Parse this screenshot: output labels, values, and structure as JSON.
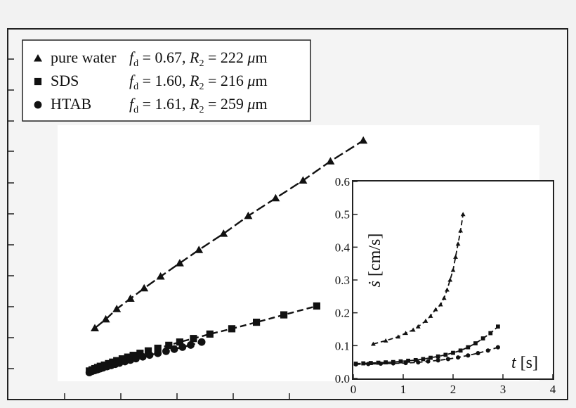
{
  "chart_data": [
    {
      "type": "scatter",
      "title": "",
      "xlabel": "",
      "ylabel": "",
      "legend_position": "top-left",
      "legend": [
        {
          "marker": "triangle",
          "name": "pure water",
          "params": "f",
          "sub": "d",
          "eq": " = 0.67, ",
          "r": "R",
          "rsub": "2",
          "req": " = 222 ",
          "unit": "μ",
          "unit2": "m"
        },
        {
          "marker": "square",
          "name": "SDS",
          "params": "f",
          "sub": "d",
          "eq": " = 1.60, ",
          "r": "R",
          "rsub": "2",
          "req": " = 216 ",
          "unit": "μ",
          "unit2": "m"
        },
        {
          "marker": "circle",
          "name": "HTAB",
          "params": "f",
          "sub": "d",
          "eq": " = 1.61, ",
          "r": "R",
          "rsub": "2",
          "req": " = 259 ",
          "unit": "μ",
          "unit2": "m"
        }
      ],
      "xlim": [
        0,
        1
      ],
      "ylim": [
        0,
        1
      ],
      "series": [
        {
          "marker": "triangle",
          "x": [
            0.0,
            0.04,
            0.08,
            0.13,
            0.18,
            0.24,
            0.31,
            0.38,
            0.47,
            0.56,
            0.66,
            0.76,
            0.86,
            0.98
          ],
          "y": [
            0.175,
            0.205,
            0.24,
            0.275,
            0.31,
            0.35,
            0.395,
            0.44,
            0.495,
            0.555,
            0.615,
            0.675,
            0.74,
            0.81
          ]
        },
        {
          "marker": "square",
          "x": [
            -0.02,
            -0.01,
            0.0,
            0.01,
            0.02,
            0.035,
            0.05,
            0.065,
            0.08,
            0.1,
            0.12,
            0.14,
            0.165,
            0.195,
            0.23,
            0.27,
            0.31,
            0.36,
            0.42,
            0.5,
            0.59,
            0.69,
            0.81
          ],
          "y": [
            0.03,
            0.034,
            0.038,
            0.042,
            0.046,
            0.05,
            0.055,
            0.06,
            0.065,
            0.071,
            0.077,
            0.083,
            0.09,
            0.098,
            0.107,
            0.117,
            0.128,
            0.14,
            0.155,
            0.173,
            0.195,
            0.22,
            0.25
          ]
        },
        {
          "marker": "circle",
          "x": [
            -0.02,
            -0.01,
            0.0,
            0.01,
            0.02,
            0.03,
            0.045,
            0.06,
            0.075,
            0.09,
            0.11,
            0.13,
            0.15,
            0.175,
            0.2,
            0.23,
            0.26,
            0.29,
            0.32,
            0.35,
            0.39
          ],
          "y": [
            0.025,
            0.029,
            0.032,
            0.035,
            0.038,
            0.041,
            0.045,
            0.049,
            0.053,
            0.057,
            0.062,
            0.067,
            0.072,
            0.078,
            0.084,
            0.09,
            0.097,
            0.104,
            0.111,
            0.118,
            0.128
          ]
        }
      ]
    },
    {
      "type": "scatter",
      "title": "",
      "xlabel_var": "t",
      "xlabel_unit": "[s]",
      "ylabel_var": "ṡ",
      "ylabel_unit": "[cm/s]",
      "xlim": [
        0,
        4
      ],
      "ylim": [
        0,
        0.6
      ],
      "xticks": [
        "0",
        "1",
        "2",
        "3",
        "4"
      ],
      "yticks": [
        "0.0",
        "0.1",
        "0.2",
        "0.3",
        "0.4",
        "0.5",
        "0.6"
      ],
      "series": [
        {
          "marker": "triangle",
          "x": [
            0.4,
            0.65,
            0.9,
            1.05,
            1.2,
            1.3,
            1.45,
            1.55,
            1.65,
            1.75,
            1.82,
            1.88,
            1.94,
            2.0,
            2.05,
            2.1,
            2.15,
            2.2
          ],
          "y": [
            0.105,
            0.115,
            0.127,
            0.138,
            0.148,
            0.158,
            0.175,
            0.19,
            0.21,
            0.225,
            0.245,
            0.27,
            0.3,
            0.33,
            0.37,
            0.41,
            0.45,
            0.5
          ]
        },
        {
          "marker": "square",
          "x": [
            0.05,
            0.2,
            0.35,
            0.5,
            0.65,
            0.8,
            0.95,
            1.1,
            1.25,
            1.4,
            1.55,
            1.7,
            1.85,
            2.0,
            2.15,
            2.3,
            2.45,
            2.6,
            2.75,
            2.9
          ],
          "y": [
            0.045,
            0.046,
            0.047,
            0.048,
            0.049,
            0.05,
            0.052,
            0.054,
            0.056,
            0.059,
            0.063,
            0.067,
            0.072,
            0.078,
            0.085,
            0.095,
            0.107,
            0.122,
            0.138,
            0.158
          ]
        },
        {
          "marker": "circle",
          "x": [
            0.05,
            0.3,
            0.55,
            0.8,
            1.05,
            1.3,
            1.5,
            1.7,
            1.9,
            2.1,
            2.3,
            2.5,
            2.7,
            2.9
          ],
          "y": [
            0.043,
            0.044,
            0.045,
            0.046,
            0.047,
            0.049,
            0.052,
            0.055,
            0.059,
            0.064,
            0.07,
            0.077,
            0.085,
            0.095
          ]
        }
      ]
    }
  ]
}
